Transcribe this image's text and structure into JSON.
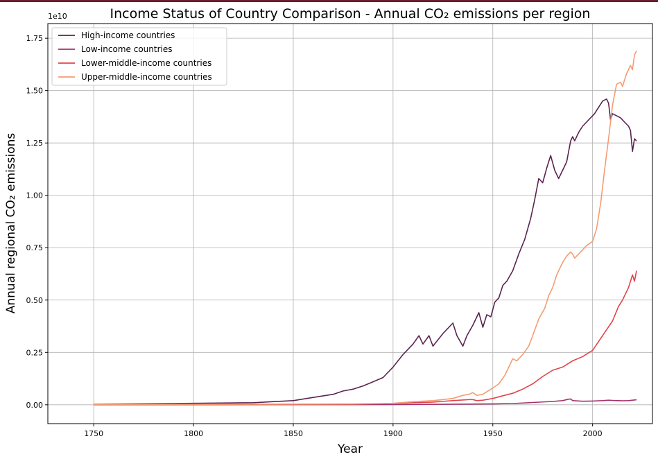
{
  "chart_data": {
    "type": "line",
    "title": "Income Status of Country Comparison - Annual CO₂ emissions per region",
    "xlabel": "Year",
    "ylabel": "Annual regional CO₂ emissions",
    "y_offset_label": "1e10",
    "xlim": [
      1727,
      2030
    ],
    "ylim": [
      -0.09,
      1.82
    ],
    "y_scale": 10000000000.0,
    "x_ticks": [
      1750,
      1800,
      1850,
      1900,
      1950,
      2000
    ],
    "x_tick_labels": [
      "1750",
      "1800",
      "1850",
      "1900",
      "1950",
      "2000"
    ],
    "y_ticks": [
      0,
      0.25,
      0.5,
      0.75,
      1.0,
      1.25,
      1.5,
      1.75
    ],
    "y_tick_labels": [
      "0.00",
      "0.25",
      "0.50",
      "0.75",
      "1.00",
      "1.25",
      "1.50",
      "1.75"
    ],
    "grid": true,
    "legend_position": "upper-left",
    "series": [
      {
        "name": "High-income countries",
        "color": "#5b2350",
        "points": [
          [
            1750,
            0.002
          ],
          [
            1800,
            0.007
          ],
          [
            1830,
            0.01
          ],
          [
            1850,
            0.02
          ],
          [
            1860,
            0.035
          ],
          [
            1870,
            0.05
          ],
          [
            1875,
            0.066
          ],
          [
            1880,
            0.075
          ],
          [
            1885,
            0.09
          ],
          [
            1890,
            0.11
          ],
          [
            1895,
            0.13
          ],
          [
            1900,
            0.18
          ],
          [
            1905,
            0.24
          ],
          [
            1910,
            0.29
          ],
          [
            1913,
            0.33
          ],
          [
            1915,
            0.29
          ],
          [
            1918,
            0.33
          ],
          [
            1920,
            0.28
          ],
          [
            1925,
            0.34
          ],
          [
            1929,
            0.38
          ],
          [
            1930,
            0.39
          ],
          [
            1932,
            0.33
          ],
          [
            1935,
            0.28
          ],
          [
            1937,
            0.33
          ],
          [
            1940,
            0.38
          ],
          [
            1943,
            0.44
          ],
          [
            1945,
            0.37
          ],
          [
            1947,
            0.43
          ],
          [
            1949,
            0.42
          ],
          [
            1951,
            0.49
          ],
          [
            1953,
            0.51
          ],
          [
            1955,
            0.57
          ],
          [
            1957,
            0.59
          ],
          [
            1960,
            0.64
          ],
          [
            1963,
            0.72
          ],
          [
            1966,
            0.79
          ],
          [
            1969,
            0.89
          ],
          [
            1971,
            0.98
          ],
          [
            1973,
            1.08
          ],
          [
            1975,
            1.06
          ],
          [
            1977,
            1.13
          ],
          [
            1979,
            1.19
          ],
          [
            1981,
            1.12
          ],
          [
            1983,
            1.08
          ],
          [
            1985,
            1.12
          ],
          [
            1987,
            1.16
          ],
          [
            1989,
            1.26
          ],
          [
            1990,
            1.28
          ],
          [
            1991,
            1.26
          ],
          [
            1993,
            1.3
          ],
          [
            1995,
            1.33
          ],
          [
            1997,
            1.35
          ],
          [
            1999,
            1.37
          ],
          [
            2001,
            1.39
          ],
          [
            2003,
            1.42
          ],
          [
            2005,
            1.45
          ],
          [
            2007,
            1.46
          ],
          [
            2008,
            1.44
          ],
          [
            2009,
            1.36
          ],
          [
            2010,
            1.39
          ],
          [
            2012,
            1.38
          ],
          [
            2014,
            1.37
          ],
          [
            2016,
            1.35
          ],
          [
            2018,
            1.33
          ],
          [
            2019,
            1.31
          ],
          [
            2020,
            1.21
          ],
          [
            2021,
            1.27
          ],
          [
            2022,
            1.26
          ]
        ]
      },
      {
        "name": "Low-income countries",
        "color": "#a3316b",
        "points": [
          [
            1750,
            0.0
          ],
          [
            1900,
            0.001
          ],
          [
            1930,
            0.003
          ],
          [
            1950,
            0.004
          ],
          [
            1960,
            0.006
          ],
          [
            1970,
            0.011
          ],
          [
            1980,
            0.016
          ],
          [
            1985,
            0.02
          ],
          [
            1988,
            0.027
          ],
          [
            1989,
            0.028
          ],
          [
            1990,
            0.02
          ],
          [
            1995,
            0.017
          ],
          [
            2000,
            0.018
          ],
          [
            2005,
            0.02
          ],
          [
            2008,
            0.022
          ],
          [
            2010,
            0.021
          ],
          [
            2015,
            0.019
          ],
          [
            2018,
            0.02
          ],
          [
            2020,
            0.022
          ],
          [
            2022,
            0.024
          ]
        ]
      },
      {
        "name": "Lower-middle-income countries",
        "color": "#e0444a",
        "points": [
          [
            1750,
            0.001
          ],
          [
            1880,
            0.003
          ],
          [
            1900,
            0.006
          ],
          [
            1910,
            0.01
          ],
          [
            1920,
            0.013
          ],
          [
            1930,
            0.02
          ],
          [
            1938,
            0.025
          ],
          [
            1940,
            0.025
          ],
          [
            1942,
            0.02
          ],
          [
            1945,
            0.022
          ],
          [
            1950,
            0.03
          ],
          [
            1955,
            0.043
          ],
          [
            1960,
            0.055
          ],
          [
            1965,
            0.075
          ],
          [
            1970,
            0.1
          ],
          [
            1975,
            0.135
          ],
          [
            1980,
            0.165
          ],
          [
            1985,
            0.18
          ],
          [
            1990,
            0.21
          ],
          [
            1995,
            0.23
          ],
          [
            2000,
            0.26
          ],
          [
            2005,
            0.33
          ],
          [
            2010,
            0.4
          ],
          [
            2013,
            0.47
          ],
          [
            2015,
            0.5
          ],
          [
            2018,
            0.56
          ],
          [
            2020,
            0.62
          ],
          [
            2021,
            0.59
          ],
          [
            2022,
            0.64
          ]
        ]
      },
      {
        "name": "Upper-middle-income countries",
        "color": "#f49c72",
        "points": [
          [
            1750,
            0.001
          ],
          [
            1880,
            0.004
          ],
          [
            1900,
            0.007
          ],
          [
            1910,
            0.015
          ],
          [
            1920,
            0.02
          ],
          [
            1930,
            0.03
          ],
          [
            1935,
            0.045
          ],
          [
            1938,
            0.05
          ],
          [
            1940,
            0.058
          ],
          [
            1942,
            0.045
          ],
          [
            1945,
            0.05
          ],
          [
            1950,
            0.08
          ],
          [
            1953,
            0.1
          ],
          [
            1956,
            0.14
          ],
          [
            1958,
            0.18
          ],
          [
            1960,
            0.22
          ],
          [
            1962,
            0.21
          ],
          [
            1965,
            0.24
          ],
          [
            1968,
            0.28
          ],
          [
            1970,
            0.33
          ],
          [
            1973,
            0.41
          ],
          [
            1976,
            0.46
          ],
          [
            1978,
            0.52
          ],
          [
            1980,
            0.56
          ],
          [
            1982,
            0.62
          ],
          [
            1985,
            0.68
          ],
          [
            1987,
            0.71
          ],
          [
            1989,
            0.73
          ],
          [
            1990,
            0.72
          ],
          [
            1991,
            0.7
          ],
          [
            1993,
            0.72
          ],
          [
            1995,
            0.74
          ],
          [
            1997,
            0.76
          ],
          [
            2000,
            0.78
          ],
          [
            2002,
            0.84
          ],
          [
            2004,
            0.96
          ],
          [
            2006,
            1.12
          ],
          [
            2008,
            1.27
          ],
          [
            2010,
            1.43
          ],
          [
            2012,
            1.53
          ],
          [
            2014,
            1.54
          ],
          [
            2015,
            1.52
          ],
          [
            2017,
            1.58
          ],
          [
            2019,
            1.62
          ],
          [
            2020,
            1.6
          ],
          [
            2021,
            1.67
          ],
          [
            2022,
            1.69
          ]
        ]
      }
    ]
  }
}
